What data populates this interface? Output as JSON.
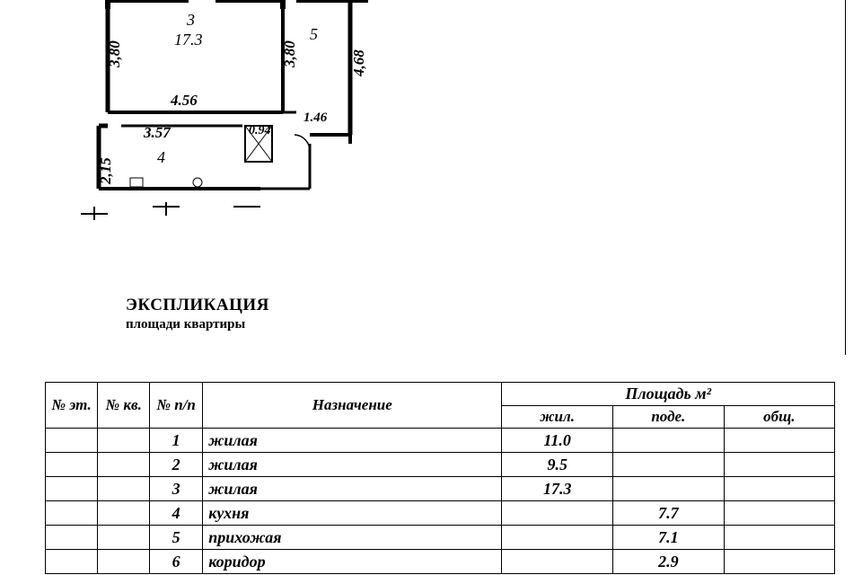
{
  "floorplan": {
    "dims": {
      "left_380": "3,80",
      "mid_380": "3,80",
      "right_468": "4,68",
      "bottom_456": "4.56",
      "right_short_146": "1.46",
      "lower_357": "3.57",
      "lower_094": "0.94",
      "left_215": "2,15"
    },
    "rooms": {
      "r3_num": "3",
      "r3_area": "17.3",
      "r5_num": "5",
      "r4_num": "4"
    }
  },
  "title": {
    "main": "ЭКСПЛИКАЦИЯ",
    "sub": "площади квартиры"
  },
  "table": {
    "headers": {
      "et": "№ эт.",
      "kv": "№ кв.",
      "pp": "№ п/п",
      "naz": "Назначение",
      "area": "Площадь  м²",
      "zhil": "жил.",
      "pode": "поде.",
      "obsh": "общ."
    },
    "rows": [
      {
        "pp": "1",
        "naz": "жилая",
        "zhil": "11.0",
        "pode": "",
        "obsh": ""
      },
      {
        "pp": "2",
        "naz": "жилая",
        "zhil": "9.5",
        "pode": "",
        "obsh": ""
      },
      {
        "pp": "3",
        "naz": "жилая",
        "zhil": "17.3",
        "pode": "",
        "obsh": ""
      },
      {
        "pp": "4",
        "naz": "кухня",
        "zhil": "",
        "pode": "7.7",
        "obsh": ""
      },
      {
        "pp": "5",
        "naz": "прихожая",
        "zhil": "",
        "pode": "7.1",
        "obsh": ""
      },
      {
        "pp": "6",
        "naz": "коридор",
        "zhil": "",
        "pode": "2.9",
        "obsh": ""
      }
    ]
  },
  "style": {
    "border_color": "#000000",
    "bg": "#ffffff",
    "handwriting_font": "Comic Sans MS",
    "print_font": "Times New Roman",
    "table_font_size_pt": 17,
    "handwriting_font_size_pt": 18
  }
}
